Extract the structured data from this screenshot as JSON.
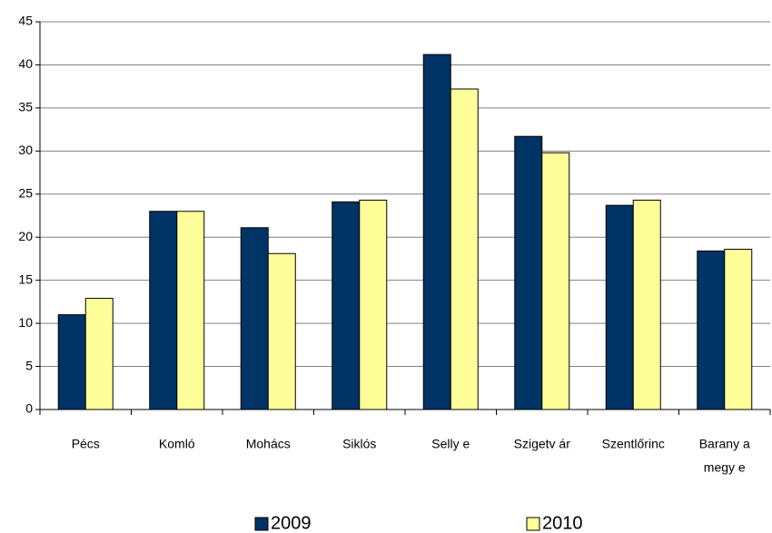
{
  "chart_data": {
    "type": "bar",
    "categories": [
      "Pécs",
      "Komló",
      "Mohács",
      "Siklós",
      "Selly e",
      "Szigetv ár",
      "Szentlőrinc",
      [
        "Barany a",
        "megy e"
      ]
    ],
    "series": [
      {
        "name": "2009",
        "color": "#003366",
        "values": [
          11,
          23,
          21.1,
          24.1,
          41.2,
          31.7,
          23.7,
          18.4
        ]
      },
      {
        "name": "2010",
        "color": "#ffff99",
        "values": [
          12.9,
          23,
          18.1,
          24.3,
          37.2,
          29.8,
          24.3,
          18.6
        ]
      }
    ],
    "ylim": [
      0,
      45
    ],
    "yticks": [
      0,
      5,
      10,
      15,
      20,
      25,
      30,
      35,
      40,
      45
    ],
    "grid": true,
    "legend": "bottom"
  }
}
